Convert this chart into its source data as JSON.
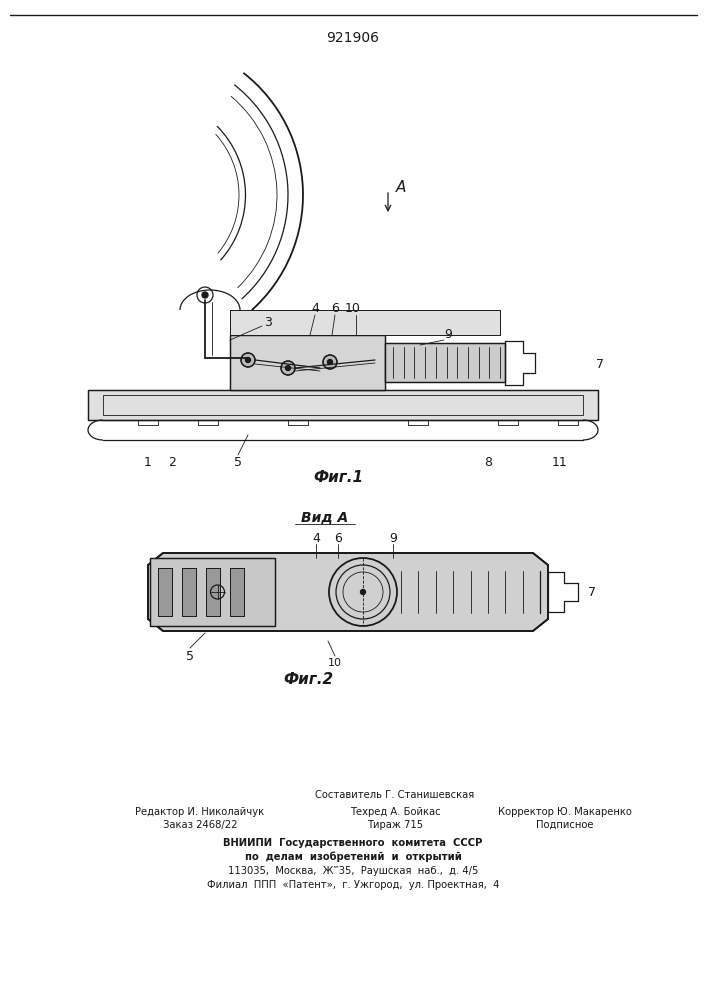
{
  "patent_number": "921906",
  "fig1_caption": "Фиг.1",
  "fig2_caption": "Фиг.2",
  "vid_a_label": "Вид A",
  "arrow_a_label": "A",
  "line_color": "#1a1a1a",
  "footer_sestavitel": "Составитель Г. Станишевская",
  "footer_redaktor": "Редактор И. Николайчук",
  "footer_zakaz": "Заказ 2468/22",
  "footer_tekhred": "Техред А. Бойкас",
  "footer_tirazh": "Тираж 715",
  "footer_korrektor": "Корректор Ю. Макаренко",
  "footer_podpisnoe": "Подписное",
  "footer_vniiipi": "ВНИИПИ  Государственного  комитета  СССР",
  "footer_line2": "по  делам  изобретений  и  открытий",
  "footer_line3": "113035,  Москва,  Ж—̵,  Раушская  наб.,  д. 4/5",
  "footer_line4": "Филиал  ППП  «Патент»,  г. Ужгород,  ул. Проектная,  4"
}
